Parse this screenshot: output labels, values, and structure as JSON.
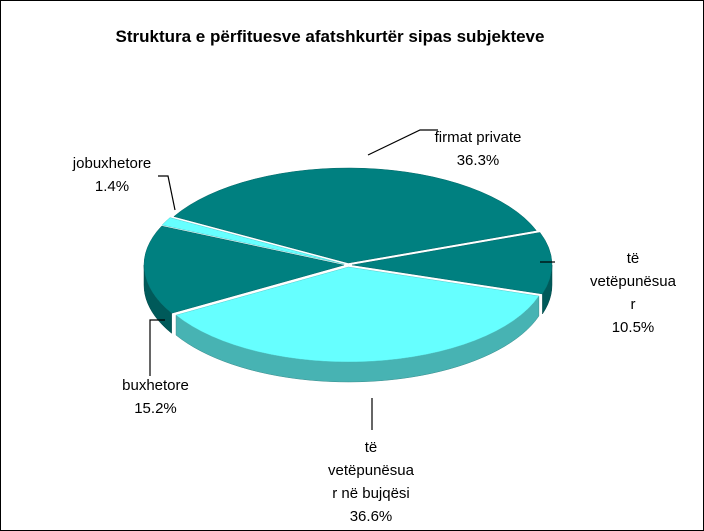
{
  "chart_data": {
    "type": "pie3d",
    "title": "Struktura e përfituesve afatshkurtër sipas subjekteve",
    "categories": [
      "firmat private",
      "të vetëpunësuar",
      "të vetëpunësuar në bujqësi",
      "buxhetore",
      "jobuxhetore"
    ],
    "values": [
      36.3,
      10.5,
      36.6,
      15.2,
      1.4
    ],
    "value_labels": [
      "36.3%",
      "10.5%",
      "36.6%",
      "15.2%",
      "1.4%"
    ],
    "colors": [
      "#008080",
      "#008080",
      "#66ffff",
      "#008080",
      "#66ffff"
    ]
  }
}
